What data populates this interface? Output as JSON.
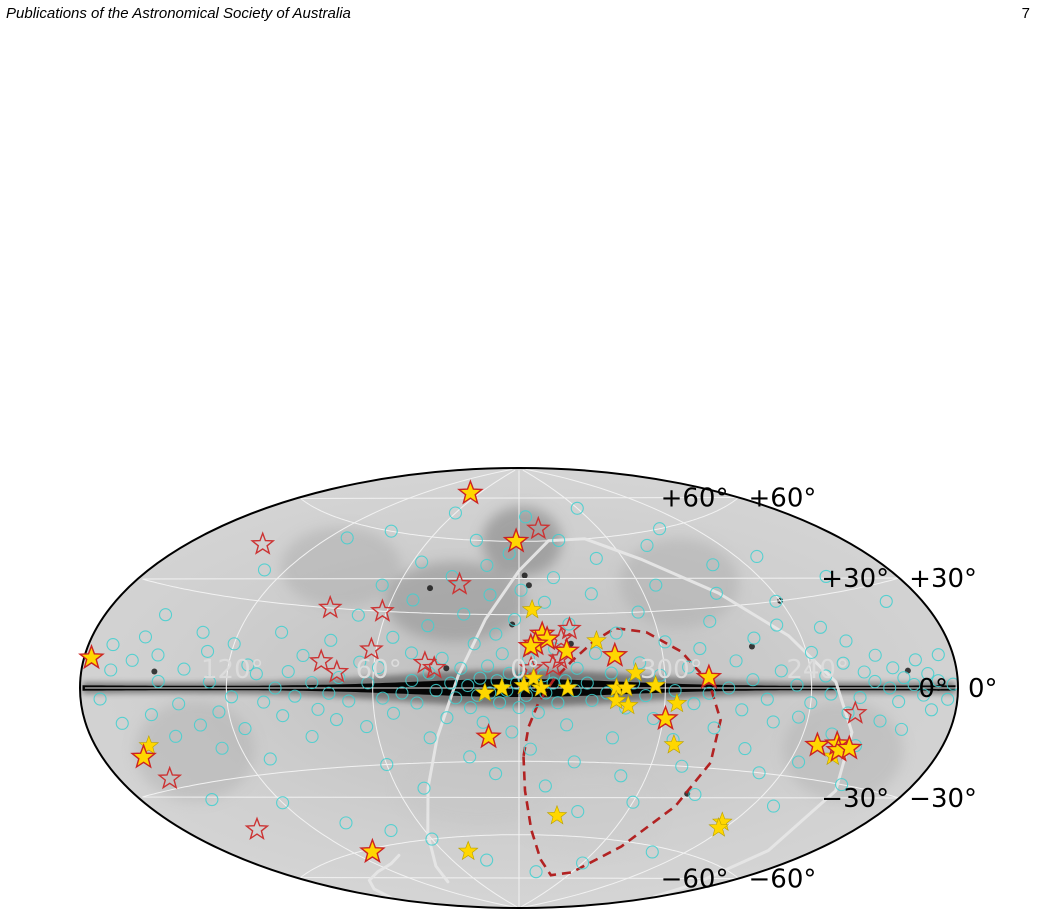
{
  "page": {
    "header": "Publications of the Astronomical Society of Australia",
    "number": "7"
  },
  "chart_data": {
    "type": "scatter",
    "projection": "aitoff",
    "title": "",
    "xlabel": "",
    "ylabel": "",
    "background": "grayscale all-sky map, Galactic plane dark",
    "grid": true,
    "lon_tick_labels": [
      "120°",
      "60°",
      "0°",
      "300°",
      "240°"
    ],
    "lon_ticks": [
      120,
      60,
      0,
      300,
      240
    ],
    "lat_tick_labels": [
      {
        "lat": 60,
        "label": "+60°"
      },
      {
        "lat": 30,
        "label": "+30°"
      },
      {
        "lat": 0,
        "label": "0°"
      },
      {
        "lat": -30,
        "label": "−30°"
      },
      {
        "lat": -60,
        "label": "−60°"
      }
    ],
    "colors": {
      "filled_star_fill": "#ffd700",
      "filled_star_edge": "#cc2222",
      "plain_star_fill": "#ffd700",
      "open_star_edge": "#cc3333",
      "circle_edge": "#3fd0d0",
      "contour": "#b22222",
      "track": "#e6e6e6"
    },
    "series": [
      {
        "marker": "filled-star-red-edge",
        "points": [
          [
            72,
            78
          ],
          [
            2,
            60
          ],
          [
            177,
            8
          ],
          [
            163,
            -20
          ],
          [
            108,
            -61
          ],
          [
            13,
            -20
          ],
          [
            -10,
            22
          ],
          [
            -12,
            20
          ],
          [
            -7,
            18
          ],
          [
            -5,
            17
          ],
          [
            -20,
            15
          ],
          [
            -40,
            13
          ],
          [
            -78,
            4
          ],
          [
            -61,
            -12
          ],
          [
            -128,
            -19
          ],
          [
            -136,
            -18
          ],
          [
            -138,
            -20
          ],
          [
            -142,
            -19
          ]
        ]
      },
      {
        "marker": "filled-star",
        "points": [
          [
            -6,
            32
          ],
          [
            -33,
            19
          ],
          [
            -2,
            1
          ],
          [
            14,
            -2
          ],
          [
            7,
            0
          ],
          [
            -9,
            0
          ],
          [
            -6,
            4
          ],
          [
            -20,
            0
          ],
          [
            -40,
            0
          ],
          [
            -44,
            0
          ],
          [
            -56,
            1
          ],
          [
            -40,
            -5
          ],
          [
            -45,
            -7
          ],
          [
            -65,
            -6
          ],
          [
            -67,
            -22
          ],
          [
            -22,
            -52
          ],
          [
            -115,
            -48
          ],
          [
            -117,
            -50
          ],
          [
            -137,
            -22
          ],
          [
            41,
            -66
          ],
          [
            -48,
            6
          ],
          [
            158,
            -17
          ]
        ]
      },
      {
        "marker": "open-star",
        "points": [
          [
            -15,
            65
          ],
          [
            147,
            47
          ],
          [
            30,
            42
          ],
          [
            86,
            30
          ],
          [
            62,
            30
          ],
          [
            62,
            15
          ],
          [
            82,
            10
          ],
          [
            75,
            6
          ],
          [
            39,
            10
          ],
          [
            35,
            8
          ],
          [
            -22,
            24
          ],
          [
            -18,
            20
          ],
          [
            -17,
            12
          ],
          [
            -14,
            9
          ],
          [
            -5,
            8
          ],
          [
            -139,
            -8
          ],
          [
            159,
            -27
          ],
          [
            148,
            -46
          ]
        ]
      },
      {
        "marker": "open-circle",
        "points": [
          [
            170,
            12
          ],
          [
            168,
            5
          ],
          [
            172,
            -3
          ],
          [
            165,
            -10
          ],
          [
            160,
            8
          ],
          [
            158,
            15
          ],
          [
            155,
            22
          ],
          [
            150,
            10
          ],
          [
            148,
            2
          ],
          [
            152,
            -8
          ],
          [
            145,
            -15
          ],
          [
            140,
            -5
          ],
          [
            138,
            6
          ],
          [
            135,
            18
          ],
          [
            133,
            -12
          ],
          [
            130,
            12
          ],
          [
            128,
            -20
          ],
          [
            127,
            2
          ],
          [
            124,
            -8
          ],
          [
            120,
            15
          ],
          [
            118,
            -3
          ],
          [
            115,
            -14
          ],
          [
            112,
            8
          ],
          [
            110,
            -25
          ],
          [
            108,
            5
          ],
          [
            105,
            -5
          ],
          [
            102,
            20
          ],
          [
            100,
            0
          ],
          [
            98,
            -10
          ],
          [
            95,
            6
          ],
          [
            92,
            -3
          ],
          [
            90,
            12
          ],
          [
            88,
            -18
          ],
          [
            85,
            2
          ],
          [
            83,
            -8
          ],
          [
            80,
            18
          ],
          [
            78,
            -2
          ],
          [
            76,
            -12
          ],
          [
            74,
            4
          ],
          [
            72,
            28
          ],
          [
            70,
            -5
          ],
          [
            68,
            40
          ],
          [
            66,
            10
          ],
          [
            64,
            -15
          ],
          [
            62,
            2
          ],
          [
            60,
            -30
          ],
          [
            58,
            8
          ],
          [
            56,
            -4
          ],
          [
            55,
            50
          ],
          [
            54,
            20
          ],
          [
            52,
            -10
          ],
          [
            50,
            35
          ],
          [
            48,
            -2
          ],
          [
            47,
            -40
          ],
          [
            45,
            14
          ],
          [
            44,
            3
          ],
          [
            42,
            -6
          ],
          [
            40,
            25
          ],
          [
            38,
            -20
          ],
          [
            37,
            6
          ],
          [
            35,
            45
          ],
          [
            34,
            -1
          ],
          [
            32,
            12
          ],
          [
            30,
            -12
          ],
          [
            29,
            60
          ],
          [
            28,
            2
          ],
          [
            26,
            -4
          ],
          [
            25,
            30
          ],
          [
            24,
            8
          ],
          [
            22,
            -28
          ],
          [
            21,
            1
          ],
          [
            20,
            -8
          ],
          [
            19,
            18
          ],
          [
            18,
            50
          ],
          [
            17,
            -3
          ],
          [
            16,
            4
          ],
          [
            15,
            -14
          ],
          [
            14,
            38
          ],
          [
            13,
            9
          ],
          [
            12,
            -2
          ],
          [
            11,
            -35
          ],
          [
            10,
            22
          ],
          [
            9,
            3
          ],
          [
            8,
            -6
          ],
          [
            7,
            14
          ],
          [
            6,
            55
          ],
          [
            5,
            -1
          ],
          [
            4,
            6
          ],
          [
            3,
            -18
          ],
          [
            2,
            28
          ],
          [
            1,
            2
          ],
          [
            0,
            -8
          ],
          [
            -1,
            40
          ],
          [
            -2,
            4
          ],
          [
            -3,
            -3
          ],
          [
            -4,
            12
          ],
          [
            -5,
            -25
          ],
          [
            -6,
            70
          ],
          [
            -7,
            1
          ],
          [
            -8,
            -10
          ],
          [
            -9,
            20
          ],
          [
            -10,
            5
          ],
          [
            -11,
            -2
          ],
          [
            -12,
            35
          ],
          [
            -13,
            -40
          ],
          [
            -14,
            2
          ],
          [
            -15,
            16
          ],
          [
            -16,
            -6
          ],
          [
            -18,
            45
          ],
          [
            -19,
            3
          ],
          [
            -20,
            -15
          ],
          [
            -22,
            26
          ],
          [
            -23,
            -1
          ],
          [
            -24,
            8
          ],
          [
            -25,
            -30
          ],
          [
            -27,
            60
          ],
          [
            -28,
            2
          ],
          [
            -30,
            -5
          ],
          [
            -32,
            14
          ],
          [
            -33,
            -50
          ],
          [
            -35,
            38
          ],
          [
            -36,
            -2
          ],
          [
            -38,
            6
          ],
          [
            -40,
            -20
          ],
          [
            -42,
            22
          ],
          [
            -44,
            -8
          ],
          [
            -45,
            52
          ],
          [
            -47,
            2
          ],
          [
            -48,
            -35
          ],
          [
            -50,
            10
          ],
          [
            -52,
            -3
          ],
          [
            -54,
            30
          ],
          [
            -56,
            -12
          ],
          [
            -58,
            5
          ],
          [
            -60,
            -45
          ],
          [
            -62,
            18
          ],
          [
            -64,
            -1
          ],
          [
            -66,
            -20
          ],
          [
            -68,
            40
          ],
          [
            -70,
            8
          ],
          [
            -72,
            -6
          ],
          [
            -74,
            -30
          ],
          [
            -76,
            15
          ],
          [
            -78,
            -2
          ],
          [
            -80,
            55
          ],
          [
            -82,
            -15
          ],
          [
            -84,
            25
          ],
          [
            -86,
            0
          ],
          [
            -88,
            -40
          ],
          [
            -90,
            10
          ],
          [
            -92,
            -8
          ],
          [
            -94,
            35
          ],
          [
            -96,
            3
          ],
          [
            -98,
            -22
          ],
          [
            -100,
            18
          ],
          [
            -102,
            -4
          ],
          [
            -104,
            45
          ],
          [
            -106,
            -12
          ],
          [
            -108,
            6
          ],
          [
            -110,
            -30
          ],
          [
            -112,
            22
          ],
          [
            -114,
            1
          ],
          [
            -116,
            -10
          ],
          [
            -118,
            30
          ],
          [
            -120,
            -5
          ],
          [
            -122,
            12
          ],
          [
            -124,
            -25
          ],
          [
            -126,
            4
          ],
          [
            -128,
            -2
          ],
          [
            -130,
            20
          ],
          [
            -132,
            -15
          ],
          [
            -134,
            8
          ],
          [
            -136,
            -8
          ],
          [
            -138,
            15
          ],
          [
            -140,
            -3
          ],
          [
            -142,
            5
          ],
          [
            -144,
            -18
          ],
          [
            -146,
            2
          ],
          [
            -148,
            10
          ],
          [
            -150,
            -10
          ],
          [
            -152,
            0
          ],
          [
            -154,
            6
          ],
          [
            -156,
            -4
          ],
          [
            -158,
            3
          ],
          [
            -160,
            -12
          ],
          [
            -162,
            1
          ],
          [
            -164,
            8
          ],
          [
            -166,
            -2
          ],
          [
            -168,
            4
          ],
          [
            -170,
            -6
          ],
          [
            -172,
            2
          ],
          [
            -174,
            9
          ],
          [
            -176,
            -3
          ],
          [
            -178,
            1
          ],
          [
            150,
            -35
          ],
          [
            120,
            -40
          ],
          [
            100,
            -50
          ],
          [
            80,
            -55
          ],
          [
            60,
            -60
          ],
          [
            30,
            -70
          ],
          [
            -20,
            -75
          ],
          [
            -60,
            -70
          ],
          [
            -100,
            -62
          ],
          [
            -130,
            -40
          ],
          [
            -150,
            -30
          ],
          [
            130,
            40
          ],
          [
            110,
            55
          ],
          [
            90,
            60
          ],
          [
            60,
            70
          ],
          [
            -60,
            72
          ],
          [
            -100,
            60
          ],
          [
            -130,
            45
          ],
          [
            -150,
            35
          ],
          [
            -165,
            25
          ]
        ]
      }
    ],
    "contour_points": [
      [
        -2,
        -28
      ],
      [
        -3,
        -42
      ],
      [
        -8,
        -58
      ],
      [
        -20,
        -70
      ],
      [
        -40,
        -76
      ],
      [
        -60,
        -74
      ],
      [
        -75,
        -62
      ],
      [
        -83,
        -45
      ],
      [
        -86,
        -28
      ],
      [
        -84,
        -12
      ],
      [
        -78,
        2
      ],
      [
        -68,
        14
      ],
      [
        -55,
        22
      ],
      [
        -42,
        24
      ],
      [
        -32,
        19
      ],
      [
        -22,
        11
      ],
      [
        -14,
        3
      ],
      [
        -8,
        -6
      ],
      [
        -4,
        -16
      ],
      [
        -2,
        -28
      ]
    ],
    "track_points": [
      [
        95,
        -76
      ],
      [
        80,
        -70
      ],
      [
        60,
        -58
      ],
      [
        45,
        -40
      ],
      [
        35,
        -20
      ],
      [
        25,
        5
      ],
      [
        15,
        28
      ],
      [
        0,
        48
      ],
      [
        -20,
        60
      ],
      [
        -45,
        60
      ],
      [
        -70,
        50
      ],
      [
        -95,
        35
      ],
      [
        -115,
        18
      ],
      [
        -130,
        2
      ],
      [
        -140,
        -14
      ],
      [
        -150,
        -32
      ],
      [
        -160,
        -52
      ],
      [
        -170,
        -66
      ],
      [
        -178,
        -72
      ]
    ],
    "track_points_2": [
      [
        178,
        -73
      ],
      [
        165,
        -70
      ],
      [
        150,
        -68
      ],
      [
        130,
        -67
      ],
      [
        110,
        -66
      ],
      [
        95,
        -64
      ]
    ],
    "dark_features": [
      [
        -5,
        42
      ],
      [
        -3,
        46
      ],
      [
        -22,
        18
      ],
      [
        3,
        26
      ],
      [
        -84,
        -40
      ],
      [
        30,
        8
      ],
      [
        -120,
        30
      ],
      [
        -98,
        15
      ],
      [
        150,
        5
      ],
      [
        -160,
        5
      ],
      [
        -172,
        0
      ],
      [
        44,
        40
      ]
    ]
  }
}
